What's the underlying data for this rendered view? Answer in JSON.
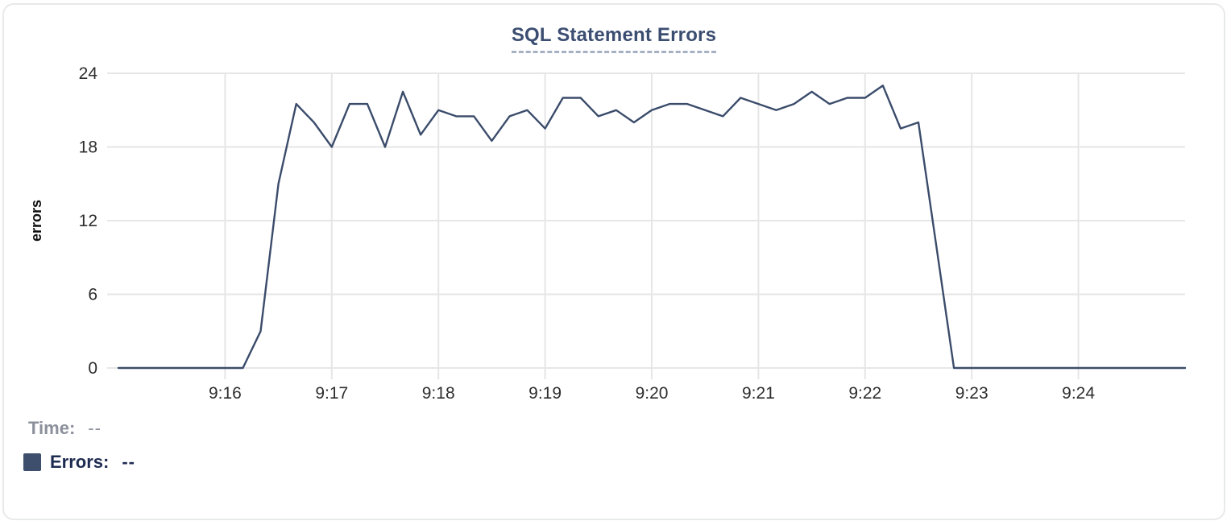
{
  "chart": {
    "title": "SQL Statement Errors"
  },
  "footer": {
    "time_label": "Time:",
    "time_value": "--",
    "errors_label": "Errors:",
    "errors_value": "--",
    "errors_swatch_color": "#3e4f6e"
  },
  "chart_data": {
    "type": "line",
    "title": "SQL Statement Errors",
    "xlabel": "",
    "ylabel": "errors",
    "ylim": [
      0,
      24
    ],
    "yticks": [
      0,
      6,
      12,
      18,
      24
    ],
    "xticks": [
      {
        "label": "9:16",
        "t": 60
      },
      {
        "label": "9:17",
        "t": 120
      },
      {
        "label": "9:18",
        "t": 180
      },
      {
        "label": "9:19",
        "t": 240
      },
      {
        "label": "9:20",
        "t": 300
      },
      {
        "label": "9:21",
        "t": 360
      },
      {
        "label": "9:22",
        "t": 420
      },
      {
        "label": "9:23",
        "t": 480
      },
      {
        "label": "9:24",
        "t": 540
      }
    ],
    "x_span_seconds": 600,
    "interval_seconds": 10,
    "grid": true,
    "legend_position": "none",
    "series": [
      {
        "name": "Errors",
        "color": "#3b4c6b",
        "times": [
          "9:15:00",
          "9:15:10",
          "9:15:20",
          "9:15:30",
          "9:15:40",
          "9:15:50",
          "9:16:00",
          "9:16:10",
          "9:16:20",
          "9:16:30",
          "9:16:40",
          "9:16:50",
          "9:17:00",
          "9:17:10",
          "9:17:20",
          "9:17:30",
          "9:17:40",
          "9:17:50",
          "9:18:00",
          "9:18:10",
          "9:18:20",
          "9:18:30",
          "9:18:40",
          "9:18:50",
          "9:19:00",
          "9:19:10",
          "9:19:20",
          "9:19:30",
          "9:19:40",
          "9:19:50",
          "9:20:00",
          "9:20:10",
          "9:20:20",
          "9:20:30",
          "9:20:40",
          "9:20:50",
          "9:21:00",
          "9:21:10",
          "9:21:20",
          "9:21:30",
          "9:21:40",
          "9:21:50",
          "9:22:00",
          "9:22:10",
          "9:22:20",
          "9:22:30",
          "9:22:40",
          "9:22:50",
          "9:23:00",
          "9:23:10",
          "9:23:20",
          "9:23:30",
          "9:23:40",
          "9:23:50",
          "9:24:00",
          "9:24:10",
          "9:24:20",
          "9:24:30",
          "9:24:40",
          "9:24:50",
          "9:25:00"
        ],
        "values": [
          0,
          0,
          0,
          0,
          0,
          0,
          0,
          0,
          3,
          15,
          21.5,
          20,
          18,
          21.5,
          21.5,
          18,
          22.5,
          19,
          21,
          20.5,
          20.5,
          18.5,
          20.5,
          21,
          19.5,
          22,
          22,
          20.5,
          21,
          20,
          21,
          21.5,
          21.5,
          21,
          20.5,
          22,
          21.5,
          21,
          21.5,
          22.5,
          21.5,
          22,
          22,
          23,
          19.5,
          20,
          10,
          0,
          0,
          0,
          0,
          0,
          0,
          0,
          0,
          0,
          0,
          0,
          0,
          0,
          0
        ]
      }
    ],
    "colors": {
      "line": "#3b4c6b",
      "grid": "#e6e6e6",
      "tick_text": "#2e2e2e",
      "axis_label_text": "#0f0f0f"
    }
  }
}
